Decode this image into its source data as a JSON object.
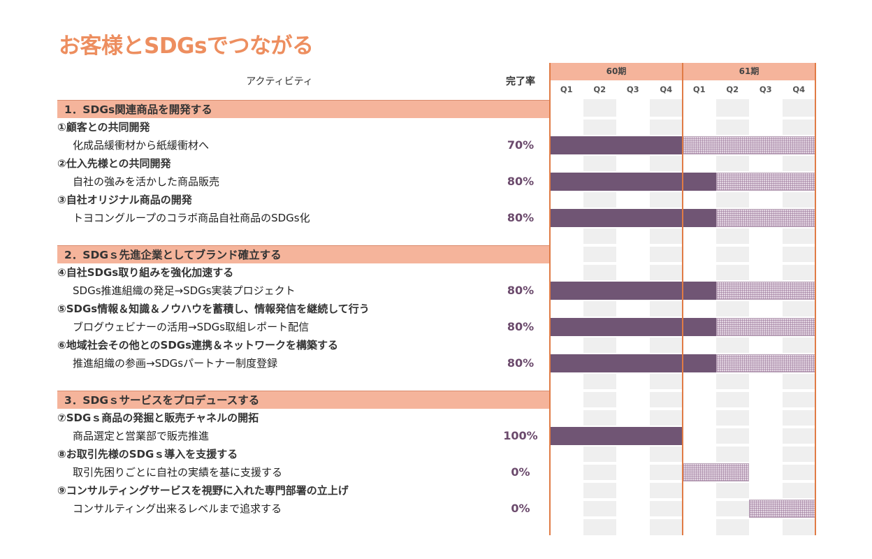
{
  "title": "お客様とSDGsでつながる",
  "header": {
    "activity": "アクティビティ",
    "rate": "完了率"
  },
  "periods": [
    "60期",
    "61期"
  ],
  "quarters": [
    "Q1",
    "Q2",
    "Q3",
    "Q4",
    "Q1",
    "Q2",
    "Q3",
    "Q4"
  ],
  "sections": [
    {
      "label": "1．SDGs関連商品を開発する",
      "items": [
        {
          "heading": "①顧客との共同開発",
          "activity": "化成品緩衝材から紙緩衝材へ",
          "rate": "70%",
          "done_quarters": 4,
          "planned_quarters": 4
        },
        {
          "heading": "②仕入先様との共同開発",
          "activity": "自社の強みを活かした商品販売",
          "rate": "80%",
          "done_quarters": 5,
          "planned_quarters": 3
        },
        {
          "heading": "③自社オリジナル商品の開発",
          "activity": "トヨコングループのコラボ商品自社商品のSDGs化",
          "rate": "80%",
          "done_quarters": 5,
          "planned_quarters": 3
        }
      ]
    },
    {
      "label": "2．SDGｓ先進企業としてブランド確立する",
      "items": [
        {
          "heading": "④自社SDGs取り組みを強化加速する",
          "activity": "SDGs推進組織の発足→SDGs実装プロジェクト",
          "rate": "80%",
          "done_quarters": 5,
          "planned_quarters": 3
        },
        {
          "heading": "⑤SDGs情報＆知識＆ノウハウを蓄積し、情報発信を継続して行う",
          "activity": "ブログウェビナーの活用→SDGs取組レポート配信",
          "rate": "80%",
          "done_quarters": 5,
          "planned_quarters": 3
        },
        {
          "heading": "⑥地域社会その他とのSDGs連携＆ネットワークを構築する",
          "activity": "推進組織の参画→SDGsパートナー制度登録",
          "rate": "80%",
          "done_quarters": 5,
          "planned_quarters": 3
        }
      ]
    },
    {
      "label": "3．SDGｓサービスをプロデュースする",
      "items": [
        {
          "heading": "⑦SDGｓ商品の発掘と販売チャネルの開拓",
          "activity": "商品選定と営業部で販売推進",
          "rate": "100%",
          "done_quarters": 4,
          "planned_quarters": 0
        },
        {
          "heading": "⑧お取引先様のSDGｓ導入を支援する",
          "activity": "取引先困りごとに自社の実績を基に支援する",
          "rate": "0%",
          "done_quarters": 0,
          "planned_quarters": 2,
          "start_quarter": 4
        },
        {
          "heading": "⑨コンサルティングサービスを視野に入れた専門部署の立上げ",
          "activity": "コンサルティング出来るレベルまで追求する",
          "rate": "0%",
          "done_quarters": 0,
          "planned_quarters": 2,
          "start_quarter": 6
        }
      ]
    }
  ],
  "colors": {
    "title": "#ed8e5f",
    "section_bg": "#f5b49b",
    "done_bar": "#705574",
    "planned_bar": "#e3d6e2",
    "divider": "#e07b45"
  }
}
